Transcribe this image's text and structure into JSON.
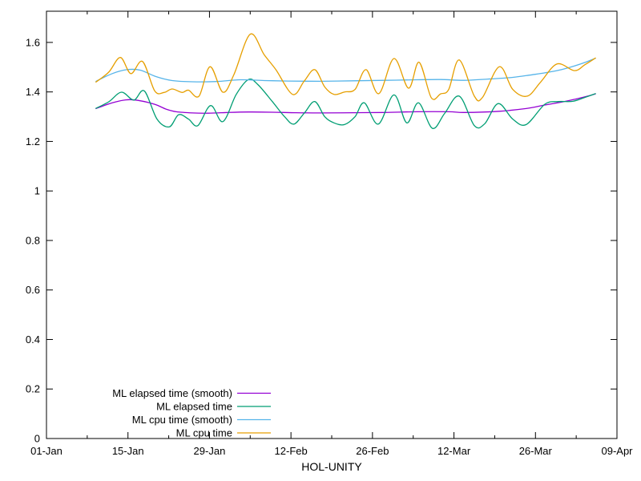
{
  "chart_data": {
    "type": "line",
    "title": "",
    "xlabel": "HOL-UNITY",
    "ylabel": "",
    "background_color": "#ffffff",
    "axis_color": "#000000",
    "grid": false,
    "legend_position": "bottom-left-inside",
    "x_axis": {
      "unit": "date (day offset from 01-Jan)",
      "range_days": [
        0,
        98
      ],
      "major_ticks": [
        {
          "day": 0,
          "label": "01-Jan"
        },
        {
          "day": 14,
          "label": "15-Jan"
        },
        {
          "day": 28,
          "label": "29-Jan"
        },
        {
          "day": 42,
          "label": "12-Feb"
        },
        {
          "day": 56,
          "label": "26-Feb"
        },
        {
          "day": 70,
          "label": "12-Mar"
        },
        {
          "day": 84,
          "label": "26-Mar"
        },
        {
          "day": 98,
          "label": "09-Apr"
        }
      ],
      "minor_tick_days": [
        7,
        21,
        35,
        49,
        63,
        77,
        91
      ]
    },
    "y_axis": {
      "range": [
        0,
        1.726
      ],
      "major_ticks": [
        {
          "value": 0,
          "label": "0"
        },
        {
          "value": 0.2,
          "label": "0.2"
        },
        {
          "value": 0.4,
          "label": "0.4"
        },
        {
          "value": 0.6,
          "label": "0.6"
        },
        {
          "value": 0.8,
          "label": "0.8"
        },
        {
          "value": 1,
          "label": "1"
        },
        {
          "value": 1.2,
          "label": "1.2"
        },
        {
          "value": 1.4,
          "label": "1.4"
        },
        {
          "value": 1.6,
          "label": "1.6"
        }
      ]
    },
    "series": [
      {
        "name": "ML elapsed time (smooth)",
        "color": "#9400d3",
        "points": [
          [
            8.5,
            1.333
          ],
          [
            11.3,
            1.356
          ],
          [
            13.6,
            1.368
          ],
          [
            15.7,
            1.366
          ],
          [
            18.6,
            1.35
          ],
          [
            20.5,
            1.331
          ],
          [
            22.3,
            1.32
          ],
          [
            25.1,
            1.315
          ],
          [
            27.8,
            1.314
          ],
          [
            31.2,
            1.317
          ],
          [
            34.7,
            1.319
          ],
          [
            38.8,
            1.318
          ],
          [
            42.9,
            1.316
          ],
          [
            47.1,
            1.315
          ],
          [
            52.6,
            1.316
          ],
          [
            58.1,
            1.317
          ],
          [
            63.6,
            1.32
          ],
          [
            69.1,
            1.32
          ],
          [
            71.8,
            1.317
          ],
          [
            77.8,
            1.322
          ],
          [
            82.4,
            1.333
          ],
          [
            85.6,
            1.347
          ],
          [
            88.3,
            1.358
          ],
          [
            90.7,
            1.37
          ],
          [
            92.5,
            1.38
          ],
          [
            94.3,
            1.392
          ]
        ]
      },
      {
        "name": "ML elapsed time",
        "color": "#009e73",
        "points": [
          [
            8.5,
            1.334
          ],
          [
            10.7,
            1.36
          ],
          [
            12.9,
            1.399
          ],
          [
            15.0,
            1.367
          ],
          [
            16.8,
            1.404
          ],
          [
            19.0,
            1.29
          ],
          [
            21.1,
            1.259
          ],
          [
            22.7,
            1.308
          ],
          [
            24.4,
            1.29
          ],
          [
            26.0,
            1.264
          ],
          [
            28.2,
            1.345
          ],
          [
            30.3,
            1.28
          ],
          [
            32.6,
            1.39
          ],
          [
            34.7,
            1.45
          ],
          [
            36.3,
            1.43
          ],
          [
            38.8,
            1.361
          ],
          [
            40.9,
            1.3
          ],
          [
            42.5,
            1.27
          ],
          [
            44.3,
            1.315
          ],
          [
            46.1,
            1.361
          ],
          [
            47.8,
            1.3
          ],
          [
            49.4,
            1.275
          ],
          [
            51.2,
            1.268
          ],
          [
            53.0,
            1.3
          ],
          [
            54.6,
            1.356
          ],
          [
            57.0,
            1.27
          ],
          [
            59.7,
            1.388
          ],
          [
            61.9,
            1.275
          ],
          [
            63.9,
            1.356
          ],
          [
            66.3,
            1.253
          ],
          [
            68.4,
            1.313
          ],
          [
            70.9,
            1.383
          ],
          [
            73.5,
            1.264
          ],
          [
            75.3,
            1.272
          ],
          [
            77.6,
            1.353
          ],
          [
            80.1,
            1.29
          ],
          [
            82.4,
            1.268
          ],
          [
            85.6,
            1.35
          ],
          [
            87.9,
            1.361
          ],
          [
            90.4,
            1.362
          ],
          [
            92.5,
            1.378
          ],
          [
            94.3,
            1.393
          ]
        ]
      },
      {
        "name": "ML cpu time (smooth)",
        "color": "#56b4e9",
        "points": [
          [
            8.5,
            1.443
          ],
          [
            11.3,
            1.474
          ],
          [
            13.8,
            1.49
          ],
          [
            16.1,
            1.488
          ],
          [
            18.8,
            1.462
          ],
          [
            21.6,
            1.446
          ],
          [
            25.1,
            1.441
          ],
          [
            29.2,
            1.442
          ],
          [
            33.3,
            1.449
          ],
          [
            37.4,
            1.446
          ],
          [
            41.5,
            1.444
          ],
          [
            47.1,
            1.443
          ],
          [
            52.6,
            1.445
          ],
          [
            58.1,
            1.447
          ],
          [
            63.6,
            1.449
          ],
          [
            67.7,
            1.45
          ],
          [
            71.8,
            1.447
          ],
          [
            75.9,
            1.452
          ],
          [
            80.1,
            1.459
          ],
          [
            83.0,
            1.468
          ],
          [
            85.6,
            1.477
          ],
          [
            87.9,
            1.487
          ],
          [
            90.7,
            1.505
          ],
          [
            92.5,
            1.519
          ],
          [
            94.3,
            1.536
          ]
        ]
      },
      {
        "name": "ML cpu time",
        "color": "#e69f00",
        "points": [
          [
            8.5,
            1.44
          ],
          [
            10.7,
            1.48
          ],
          [
            12.7,
            1.539
          ],
          [
            14.5,
            1.474
          ],
          [
            16.5,
            1.523
          ],
          [
            18.6,
            1.404
          ],
          [
            20.2,
            1.398
          ],
          [
            21.6,
            1.412
          ],
          [
            23.3,
            1.398
          ],
          [
            24.4,
            1.407
          ],
          [
            26.2,
            1.383
          ],
          [
            28.1,
            1.502
          ],
          [
            30.3,
            1.399
          ],
          [
            32.2,
            1.47
          ],
          [
            35.0,
            1.633
          ],
          [
            37.4,
            1.55
          ],
          [
            39.4,
            1.49
          ],
          [
            42.3,
            1.39
          ],
          [
            44.3,
            1.445
          ],
          [
            46.1,
            1.49
          ],
          [
            47.8,
            1.42
          ],
          [
            49.4,
            1.39
          ],
          [
            51.2,
            1.4
          ],
          [
            53.0,
            1.41
          ],
          [
            54.9,
            1.49
          ],
          [
            57.1,
            1.393
          ],
          [
            59.7,
            1.535
          ],
          [
            62.2,
            1.415
          ],
          [
            64.0,
            1.52
          ],
          [
            66.1,
            1.377
          ],
          [
            67.7,
            1.392
          ],
          [
            69.1,
            1.41
          ],
          [
            70.9,
            1.529
          ],
          [
            73.5,
            1.383
          ],
          [
            74.9,
            1.378
          ],
          [
            77.8,
            1.502
          ],
          [
            80.1,
            1.41
          ],
          [
            82.6,
            1.383
          ],
          [
            84.9,
            1.44
          ],
          [
            87.7,
            1.513
          ],
          [
            90.7,
            1.486
          ],
          [
            92.5,
            1.51
          ],
          [
            94.3,
            1.537
          ]
        ]
      }
    ]
  }
}
